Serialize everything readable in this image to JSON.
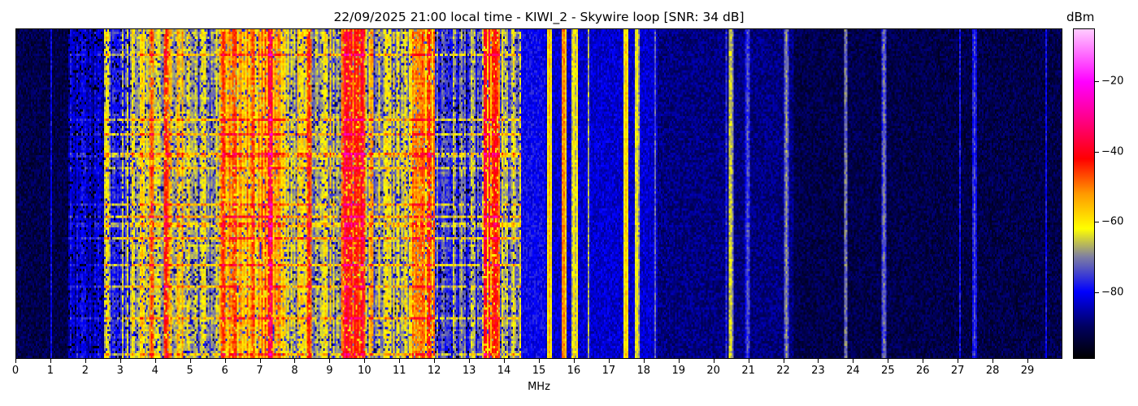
{
  "chart_data": {
    "type": "heatmap",
    "title": "22/09/2025 21:00 local time - KIWI_2 - Skywire loop [SNR: 34 dB]",
    "xlabel": "MHz",
    "ylabel": "",
    "xlim": [
      0,
      30
    ],
    "xticks": [
      0,
      1,
      2,
      3,
      4,
      5,
      6,
      7,
      8,
      9,
      10,
      11,
      12,
      13,
      14,
      15,
      16,
      17,
      18,
      19,
      20,
      21,
      22,
      23,
      24,
      25,
      26,
      27,
      28,
      29
    ],
    "colorbar": {
      "label": "dBm",
      "range": [
        -99,
        -5
      ],
      "ticks": [
        -20,
        -40,
        -60,
        -80
      ],
      "tick_labels": [
        "−20",
        "−40",
        "−60",
        "−80"
      ]
    },
    "colormap": [
      [
        -99,
        "#000000"
      ],
      [
        -90,
        "#000060"
      ],
      [
        -80,
        "#0000ff"
      ],
      [
        -70,
        "#8080a0"
      ],
      [
        -62,
        "#ffff00"
      ],
      [
        -52,
        "#ff9900"
      ],
      [
        -42,
        "#ff0000"
      ],
      [
        -30,
        "#ff0090"
      ],
      [
        -20,
        "#ff00ff"
      ],
      [
        -5,
        "#ffccff"
      ]
    ],
    "band_levels_dbm": [
      [
        0.0,
        1.5,
        -92
      ],
      [
        1.5,
        2.5,
        -83
      ],
      [
        2.5,
        3.3,
        -72
      ],
      [
        3.3,
        5.0,
        -62
      ],
      [
        5.0,
        5.8,
        -68
      ],
      [
        5.8,
        7.6,
        -55
      ],
      [
        7.6,
        9.3,
        -64
      ],
      [
        9.3,
        10.0,
        -44
      ],
      [
        10.0,
        11.3,
        -66
      ],
      [
        11.3,
        12.0,
        -56
      ],
      [
        12.0,
        13.4,
        -74
      ],
      [
        13.4,
        13.9,
        -48
      ],
      [
        13.9,
        14.5,
        -70
      ],
      [
        14.5,
        15.2,
        -80
      ],
      [
        15.2,
        18.4,
        -83
      ],
      [
        18.4,
        22.3,
        -88
      ],
      [
        22.3,
        30.0,
        -92
      ]
    ],
    "carriers_mhz_dbm": [
      [
        2.6,
        -58
      ],
      [
        3.9,
        -45
      ],
      [
        4.3,
        -40
      ],
      [
        5.95,
        -42
      ],
      [
        6.8,
        -44
      ],
      [
        7.3,
        -32
      ],
      [
        8.4,
        -42
      ],
      [
        9.5,
        -40
      ],
      [
        9.8,
        -42
      ],
      [
        10.2,
        -50
      ],
      [
        11.6,
        -48
      ],
      [
        11.85,
        -42
      ],
      [
        13.7,
        -42
      ],
      [
        15.3,
        -55
      ],
      [
        15.7,
        -48
      ],
      [
        16.0,
        -60
      ],
      [
        17.5,
        -55
      ],
      [
        17.8,
        -60
      ],
      [
        20.5,
        -62
      ],
      [
        21.0,
        -72
      ],
      [
        22.1,
        -68
      ],
      [
        24.9,
        -70
      ],
      [
        27.5,
        -74
      ]
    ]
  }
}
